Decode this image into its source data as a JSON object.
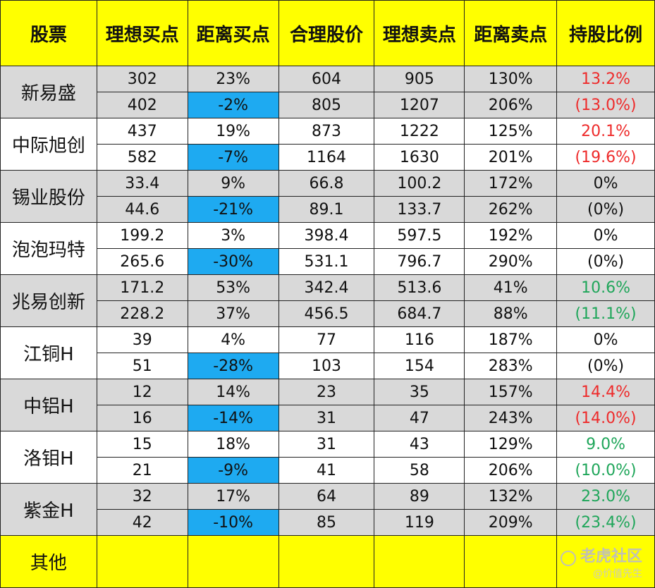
{
  "headers": [
    "股票",
    "理想买点",
    "距离买点",
    "合理股价",
    "理想卖点",
    "距离卖点",
    "持股比例"
  ],
  "stocks": [
    {
      "name": "新易盛",
      "bg": "g",
      "color": "red",
      "rows": [
        [
          "302",
          "23%",
          "604",
          "905",
          "130%",
          "13.2%"
        ],
        [
          "402",
          "-2%",
          "805",
          "1207",
          "206%",
          "(13.0%)"
        ]
      ],
      "neg2": true
    },
    {
      "name": "中际旭创",
      "bg": "w",
      "color": "red",
      "rows": [
        [
          "437",
          "19%",
          "873",
          "1222",
          "125%",
          "20.1%"
        ],
        [
          "582",
          "-7%",
          "1164",
          "1630",
          "201%",
          "(19.6%)"
        ]
      ],
      "neg2": true
    },
    {
      "name": "锡业股份",
      "bg": "g",
      "color": "black",
      "rows": [
        [
          "33.4",
          "9%",
          "66.8",
          "100.2",
          "172%",
          "0%"
        ],
        [
          "44.6",
          "-21%",
          "89.1",
          "133.7",
          "262%",
          "(0%)"
        ]
      ],
      "neg2": true
    },
    {
      "name": "泡泡玛特",
      "bg": "w",
      "color": "black",
      "rows": [
        [
          "199.2",
          "3%",
          "398.4",
          "597.5",
          "192%",
          "0%"
        ],
        [
          "265.6",
          "-30%",
          "531.1",
          "796.7",
          "290%",
          "(0%)"
        ]
      ],
      "neg2": true
    },
    {
      "name": "兆易创新",
      "bg": "g",
      "color": "green",
      "rows": [
        [
          "171.2",
          "53%",
          "342.4",
          "513.6",
          "41%",
          "10.6%"
        ],
        [
          "228.2",
          "37%",
          "456.5",
          "684.7",
          "88%",
          "(11.1%)"
        ]
      ],
      "neg2": false
    },
    {
      "name": "江铜H",
      "bg": "w",
      "color": "black",
      "rows": [
        [
          "39",
          "4%",
          "77",
          "116",
          "187%",
          "0%"
        ],
        [
          "51",
          "-28%",
          "103",
          "154",
          "283%",
          "(0%)"
        ]
      ],
      "neg2": true
    },
    {
      "name": "中铝H",
      "bg": "g",
      "color": "red",
      "rows": [
        [
          "12",
          "14%",
          "23",
          "35",
          "157%",
          "14.4%"
        ],
        [
          "16",
          "-14%",
          "31",
          "47",
          "243%",
          "(14.0%)"
        ]
      ],
      "neg2": true
    },
    {
      "name": "洛钼H",
      "bg": "w",
      "color": "green",
      "rows": [
        [
          "15",
          "18%",
          "31",
          "43",
          "129%",
          "9.0%"
        ],
        [
          "21",
          "-9%",
          "41",
          "58",
          "206%",
          "(10.0%)"
        ]
      ],
      "neg2": true
    },
    {
      "name": "紫金H",
      "bg": "g",
      "color": "green",
      "rows": [
        [
          "32",
          "17%",
          "64",
          "89",
          "132%",
          "23.0%"
        ],
        [
          "42",
          "-10%",
          "85",
          "119",
          "209%",
          "(23.4%)"
        ]
      ],
      "neg2": true
    }
  ],
  "other": {
    "name": "其他"
  },
  "watermark": {
    "brand": "老虎社区",
    "author": "@价值先生"
  },
  "colors": {
    "header_bg": "#ffff00",
    "gray_row": "#d9d9d9",
    "neg_cell": "#1eaaf1",
    "red": "#ee2b2b",
    "green": "#1fa65a"
  }
}
